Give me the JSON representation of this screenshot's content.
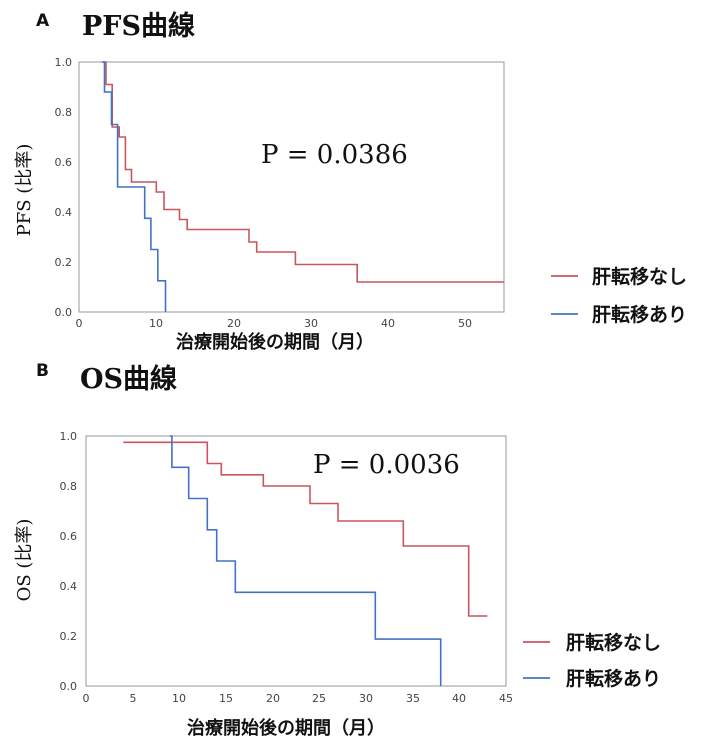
{
  "colors": {
    "red": "#c8565f",
    "blue": "#4472c4"
  },
  "chart_data": [
    {
      "type": "line",
      "panel": "A",
      "title": "PFS曲線",
      "xlabel": "治療開始後の期間（月）",
      "ylabel": "PFS (比率)",
      "xlim": [
        0,
        55
      ],
      "ylim": [
        0,
        1
      ],
      "xticks": [
        "0",
        "10",
        "20",
        "30",
        "40",
        "50"
      ],
      "yticks": [
        "0.0",
        "0.2",
        "0.4",
        "0.6",
        "0.8",
        "1.0"
      ],
      "annotation": "P = 0.0386",
      "legend_position": "right",
      "series": [
        {
          "name": "肝転移なし",
          "color": "#c8565f",
          "steps": [
            [
              3,
              1.0
            ],
            [
              3.5,
              0.91
            ],
            [
              4.3,
              0.74
            ],
            [
              5.2,
              0.7
            ],
            [
              6,
              0.57
            ],
            [
              6.8,
              0.52
            ],
            [
              10,
              0.48
            ],
            [
              11,
              0.41
            ],
            [
              13,
              0.37
            ],
            [
              14,
              0.33
            ],
            [
              22,
              0.28
            ],
            [
              23,
              0.24
            ],
            [
              28,
              0.19
            ],
            [
              36,
              0.12
            ],
            [
              55,
              0.12
            ]
          ]
        },
        {
          "name": "肝転移あり",
          "color": "#4472c4",
          "steps": [
            [
              3,
              1.0
            ],
            [
              3.3,
              0.88
            ],
            [
              4.2,
              0.75
            ],
            [
              5,
              0.5
            ],
            [
              8.5,
              0.375
            ],
            [
              9.3,
              0.25
            ],
            [
              10.2,
              0.125
            ],
            [
              11.2,
              0
            ]
          ]
        }
      ]
    },
    {
      "type": "line",
      "panel": "B",
      "title": "OS曲線",
      "xlabel": "治療開始後の期間（月）",
      "ylabel": "OS (比率)",
      "xlim": [
        0,
        45
      ],
      "ylim": [
        0,
        1
      ],
      "xticks": [
        "0",
        "5",
        "10",
        "15",
        "20",
        "25",
        "30",
        "35",
        "40",
        "45"
      ],
      "yticks": [
        "0.0",
        "0.2",
        "0.4",
        "0.6",
        "0.8",
        "1.0"
      ],
      "annotation": "P = 0.0036",
      "legend_position": "right",
      "series": [
        {
          "name": "肝転移なし",
          "color": "#c8565f",
          "steps": [
            [
              4,
              0.975
            ],
            [
              13,
              0.89
            ],
            [
              14.5,
              0.845
            ],
            [
              19,
              0.8
            ],
            [
              24,
              0.73
            ],
            [
              27,
              0.66
            ],
            [
              34,
              0.56
            ],
            [
              41,
              0.28
            ],
            [
              43,
              0.28
            ]
          ]
        },
        {
          "name": "肝転移あり",
          "color": "#4472c4",
          "steps": [
            [
              9,
              1.0
            ],
            [
              9.2,
              0.875
            ],
            [
              11,
              0.75
            ],
            [
              13,
              0.625
            ],
            [
              14,
              0.5
            ],
            [
              16,
              0.375
            ],
            [
              31,
              0.1875
            ],
            [
              38,
              0.0
            ]
          ]
        }
      ]
    }
  ]
}
